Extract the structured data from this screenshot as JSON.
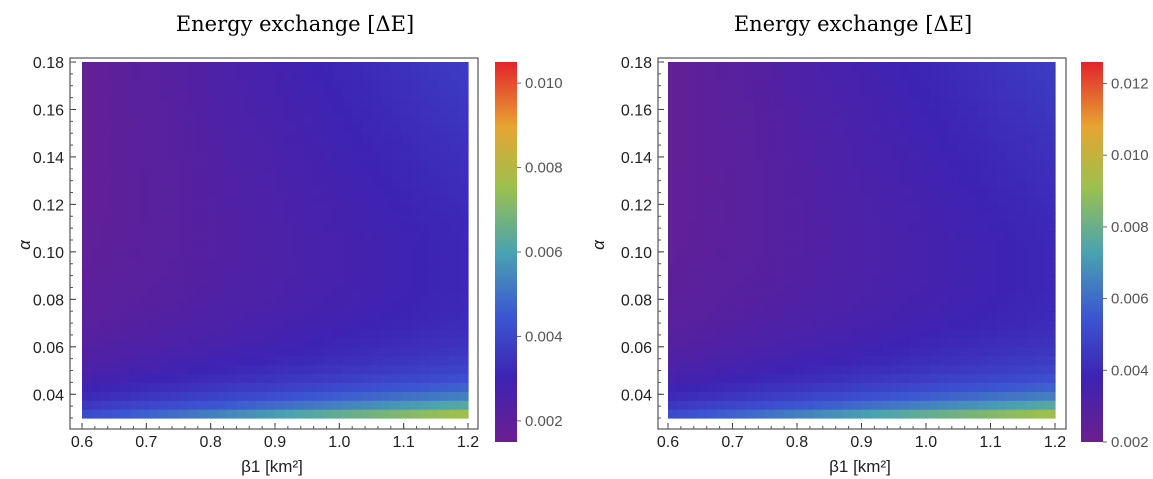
{
  "chart_data": [
    {
      "type": "heatmap",
      "title": "Energy exchange [ΔE]",
      "xlabel": "β1 [km²]",
      "ylabel": "α",
      "xlim": [
        0.6,
        1.2
      ],
      "ylim": [
        0.03,
        0.18
      ],
      "x_ticks": [
        "0.6",
        "0.7",
        "0.8",
        "0.9",
        "1.0",
        "1.1",
        "1.2"
      ],
      "y_ticks": [
        "0.04",
        "0.06",
        "0.08",
        "0.10",
        "0.12",
        "0.14",
        "0.16",
        "0.18"
      ],
      "colorbar_range": [
        0.0015,
        0.0105
      ],
      "colorbar_ticks": [
        "0.002",
        "0.004",
        "0.006",
        "0.008",
        "0.010"
      ],
      "colorscale": [
        "#6b1f8f",
        "#3d23b4",
        "#3c56d2",
        "#4aa3b0",
        "#9cc04e",
        "#e6a531",
        "#e3232b"
      ],
      "grid": false
    },
    {
      "type": "heatmap",
      "title": "Energy exchange [ΔE]",
      "xlabel": "β1 [km²]",
      "ylabel": "α",
      "xlim": [
        0.6,
        1.2
      ],
      "ylim": [
        0.03,
        0.18
      ],
      "x_ticks": [
        "0.6",
        "0.7",
        "0.8",
        "0.9",
        "1.0",
        "1.1",
        "1.2"
      ],
      "y_ticks": [
        "0.04",
        "0.06",
        "0.08",
        "0.10",
        "0.12",
        "0.14",
        "0.16",
        "0.18"
      ],
      "colorbar_range": [
        0.002,
        0.0126
      ],
      "colorbar_ticks": [
        "0.002",
        "0.004",
        "0.006",
        "0.008",
        "0.010",
        "0.012"
      ],
      "colorscale": [
        "#6b1f8f",
        "#3d23b4",
        "#3c56d2",
        "#4aa3b0",
        "#9cc04e",
        "#e6a531",
        "#e3232b"
      ],
      "grid": false
    }
  ]
}
